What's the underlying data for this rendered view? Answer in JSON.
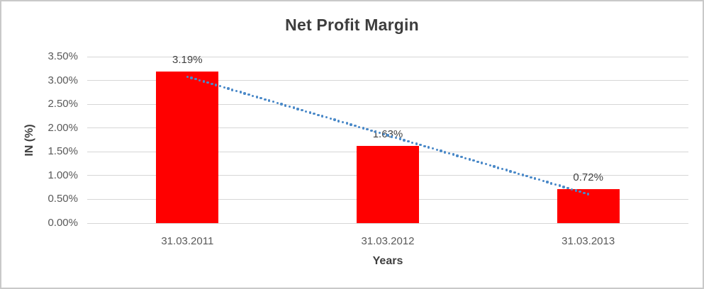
{
  "chart_data": {
    "type": "bar",
    "title": "Net Profit Margin",
    "xlabel": "Years",
    "ylabel": "IN (%)",
    "categories": [
      "31.03.2011",
      "31.03.2012",
      "31.03.2013"
    ],
    "series": [
      {
        "name": "Net Profit Margin",
        "values": [
          3.19,
          1.63,
          0.72
        ],
        "value_labels": [
          "3.19%",
          "1.63%",
          "0.72%"
        ],
        "color": "#ff0000"
      }
    ],
    "ylim": [
      0,
      3.5
    ],
    "y_ticks": [
      "0.00%",
      "0.50%",
      "1.00%",
      "1.50%",
      "2.00%",
      "2.50%",
      "3.00%",
      "3.50%"
    ],
    "grid": true,
    "legend": "none",
    "trendline": {
      "type": "linear",
      "style": "dotted",
      "color": "#4a89c8",
      "start_value": 3.08,
      "end_value": 0.61
    }
  },
  "colors": {
    "bar": "#ff0000",
    "trendline": "#4a89c8",
    "gridline": "#d6d6d6",
    "title_text": "#3d3d3d",
    "tick_text": "#595959",
    "border": "#c9c9c9"
  }
}
